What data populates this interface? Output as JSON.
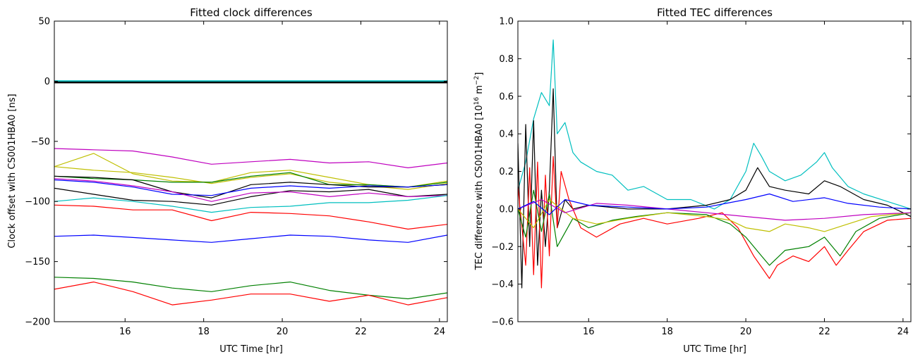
{
  "chart_data": [
    {
      "type": "line",
      "title": "Fitted clock differences",
      "xlabel": "UTC Time [hr]",
      "ylabel": "Clock offset with CS001HBA0 [ns]",
      "xlim": [
        14.2,
        24.2
      ],
      "ylim": [
        -200,
        50
      ],
      "xticks": [
        16,
        18,
        20,
        22,
        24
      ],
      "yticks": [
        -200,
        -150,
        -100,
        -50,
        0,
        50
      ],
      "grid": false,
      "legend": "none",
      "x": [
        14.2,
        15.2,
        16.2,
        17.2,
        18.2,
        19.2,
        20.2,
        21.2,
        22.2,
        23.2,
        24.2
      ],
      "series": [
        {
          "color": "#00bfbf",
          "values": [
            0,
            0,
            0,
            0,
            0,
            0,
            0,
            0,
            0,
            0,
            0
          ]
        },
        {
          "color": "#000000",
          "values": [
            -1,
            -1,
            -1,
            -1,
            -1,
            -1,
            -1,
            -1,
            -1,
            -1,
            -1
          ]
        },
        {
          "color": "#bf00bf",
          "values": [
            -56,
            -57,
            -58,
            -63,
            -69,
            -67,
            -65,
            -68,
            -67,
            -72,
            -68
          ]
        },
        {
          "color": "#bfbf00",
          "values": [
            -71,
            -60,
            -77,
            -83,
            -84,
            -76,
            -74,
            -80,
            -86,
            -88,
            -83
          ]
        },
        {
          "color": "#bfbf00",
          "values": [
            -71,
            -74,
            -76,
            -80,
            -85,
            -80,
            -77,
            -84,
            -87,
            -90,
            -85
          ]
        },
        {
          "color": "#008000",
          "values": [
            -79,
            -81,
            -82,
            -84,
            -84,
            -79,
            -76,
            -86,
            -86,
            -88,
            -84
          ]
        },
        {
          "color": "#000000",
          "values": [
            -79,
            -80,
            -82,
            -92,
            -97,
            -86,
            -84,
            -86,
            -88,
            -88,
            -86
          ]
        },
        {
          "color": "#0000ff",
          "values": [
            -82,
            -84,
            -88,
            -94,
            -95,
            -89,
            -87,
            -89,
            -87,
            -88,
            -86
          ]
        },
        {
          "color": "#000000",
          "values": [
            -89,
            -94,
            -99,
            -100,
            -103,
            -96,
            -91,
            -92,
            -90,
            -96,
            -94
          ]
        },
        {
          "color": "#bf00bf",
          "values": [
            -81,
            -83,
            -87,
            -92,
            -100,
            -93,
            -92,
            -96,
            -93,
            -96,
            -95
          ]
        },
        {
          "color": "#00bfbf",
          "values": [
            -100,
            -97,
            -100,
            -104,
            -109,
            -105,
            -104,
            -101,
            -101,
            -99,
            -95
          ]
        },
        {
          "color": "#ff0000",
          "values": [
            -103,
            -104,
            -107,
            -107,
            -116,
            -109,
            -110,
            -112,
            -117,
            -123,
            -119
          ]
        },
        {
          "color": "#0000ff",
          "values": [
            -129,
            -128,
            -130,
            -132,
            -134,
            -131,
            -128,
            -129,
            -132,
            -134,
            -128
          ]
        },
        {
          "color": "#008000",
          "values": [
            -163,
            -164,
            -167,
            -172,
            -175,
            -170,
            -167,
            -174,
            -178,
            -181,
            -176
          ]
        },
        {
          "color": "#ff0000",
          "values": [
            -173,
            -167,
            -175,
            -186,
            -182,
            -177,
            -177,
            -183,
            -178,
            -186,
            -180
          ]
        }
      ]
    },
    {
      "type": "line",
      "title": "Fitted TEC differences",
      "xlabel": "UTC Time [hr]",
      "ylabel_prefix": "TEC difference with CS001HBA0 [10",
      "ylabel_exp1": "16",
      "ylabel_mid": " m",
      "ylabel_exp2": "−2",
      "ylabel_suffix": "]",
      "xlim": [
        14.2,
        24.2
      ],
      "ylim": [
        -0.6,
        1.0
      ],
      "xticks": [
        16,
        18,
        20,
        22,
        24
      ],
      "yticks": [
        -0.6,
        -0.4,
        -0.2,
        0.0,
        0.2,
        0.4,
        0.6,
        0.8,
        1.0
      ],
      "ytick_labels": [
        "−0.6",
        "−0.4",
        "−0.2",
        "0.0",
        "0.2",
        "0.4",
        "0.6",
        "0.8",
        "1.0"
      ],
      "grid": false,
      "legend": "none",
      "series": [
        {
          "color": "#00bfbf",
          "x": [
            14.2,
            14.4,
            14.6,
            14.8,
            15.0,
            15.1,
            15.2,
            15.4,
            15.6,
            15.8,
            16.2,
            16.6,
            17.0,
            17.4,
            18.0,
            18.6,
            19.2,
            19.6,
            20.0,
            20.2,
            20.4,
            20.6,
            21.0,
            21.4,
            21.8,
            22.0,
            22.2,
            22.6,
            23.0,
            23.6,
            24.2
          ],
          "values": [
            0.1,
            0.25,
            0.48,
            0.62,
            0.55,
            0.9,
            0.4,
            0.46,
            0.3,
            0.25,
            0.2,
            0.18,
            0.1,
            0.12,
            0.05,
            0.05,
            0.0,
            0.05,
            0.2,
            0.35,
            0.28,
            0.2,
            0.15,
            0.18,
            0.25,
            0.3,
            0.22,
            0.12,
            0.08,
            0.04,
            0.0
          ]
        },
        {
          "color": "#000000",
          "x": [
            14.2,
            14.3,
            14.4,
            14.5,
            14.6,
            14.7,
            14.8,
            14.9,
            15.0,
            15.1,
            15.2,
            15.4,
            15.6,
            16.0,
            17.0,
            18.0,
            19.0,
            19.6,
            20.0,
            20.3,
            20.6,
            21.0,
            21.6,
            22.0,
            22.4,
            23.0,
            23.6,
            24.2
          ],
          "values": [
            0.35,
            -0.42,
            0.45,
            -0.2,
            0.47,
            -0.3,
            0.1,
            -0.2,
            0.1,
            0.64,
            -0.1,
            0.05,
            0.0,
            0.02,
            0.0,
            0.0,
            0.02,
            0.05,
            0.1,
            0.22,
            0.12,
            0.1,
            0.08,
            0.15,
            0.12,
            0.05,
            0.02,
            -0.04
          ]
        },
        {
          "color": "#ff0000",
          "x": [
            14.2,
            14.4,
            14.5,
            14.6,
            14.7,
            14.8,
            14.9,
            15.0,
            15.1,
            15.2,
            15.3,
            15.5,
            15.8,
            16.2,
            16.8,
            17.4,
            18.0,
            18.8,
            19.4,
            19.8,
            20.2,
            20.6,
            20.8,
            21.2,
            21.6,
            22.0,
            22.3,
            22.6,
            23.0,
            23.6,
            24.2
          ],
          "values": [
            0.12,
            -0.3,
            0.22,
            -0.35,
            0.25,
            -0.42,
            0.18,
            -0.25,
            0.28,
            -0.1,
            0.2,
            0.05,
            -0.1,
            -0.15,
            -0.08,
            -0.05,
            -0.08,
            -0.05,
            -0.02,
            -0.1,
            -0.25,
            -0.37,
            -0.3,
            -0.25,
            -0.28,
            -0.2,
            -0.3,
            -0.22,
            -0.12,
            -0.06,
            -0.05
          ]
        },
        {
          "color": "#008000",
          "x": [
            14.2,
            14.4,
            14.6,
            14.8,
            15.0,
            15.2,
            15.6,
            16.0,
            16.6,
            17.2,
            18.0,
            19.0,
            19.6,
            20.0,
            20.4,
            20.6,
            21.0,
            21.6,
            22.0,
            22.4,
            22.8,
            23.4,
            24.2
          ],
          "values": [
            0.0,
            -0.15,
            0.1,
            -0.12,
            0.08,
            -0.2,
            -0.05,
            -0.1,
            -0.06,
            -0.04,
            -0.02,
            -0.03,
            -0.08,
            -0.15,
            -0.25,
            -0.3,
            -0.22,
            -0.2,
            -0.15,
            -0.25,
            -0.12,
            -0.05,
            -0.02
          ]
        },
        {
          "color": "#bfbf00",
          "x": [
            14.2,
            14.6,
            15.0,
            15.6,
            16.2,
            17.0,
            18.0,
            19.0,
            19.6,
            20.0,
            20.6,
            21.0,
            21.6,
            22.0,
            22.6,
            23.2,
            24.2
          ],
          "values": [
            0.0,
            -0.1,
            0.05,
            -0.05,
            -0.08,
            -0.05,
            -0.02,
            -0.04,
            -0.06,
            -0.1,
            -0.12,
            -0.08,
            -0.1,
            -0.12,
            -0.08,
            -0.04,
            -0.02
          ]
        },
        {
          "color": "#bf00bf",
          "x": [
            14.2,
            14.8,
            15.4,
            16.2,
            17.0,
            18.0,
            19.0,
            20.0,
            21.0,
            22.0,
            23.0,
            24.2
          ],
          "values": [
            0.0,
            0.05,
            -0.02,
            0.03,
            0.02,
            0.0,
            -0.02,
            -0.04,
            -0.06,
            -0.05,
            -0.03,
            -0.02
          ]
        },
        {
          "color": "#0000ff",
          "x": [
            14.2,
            14.6,
            15.0,
            15.4,
            16.0,
            17.0,
            18.0,
            19.0,
            20.0,
            20.6,
            21.2,
            22.0,
            22.6,
            23.4,
            24.2
          ],
          "values": [
            0.0,
            0.04,
            -0.03,
            0.05,
            0.02,
            0.01,
            0.0,
            0.01,
            0.05,
            0.08,
            0.04,
            0.06,
            0.03,
            0.01,
            0.0
          ]
        }
      ]
    }
  ]
}
